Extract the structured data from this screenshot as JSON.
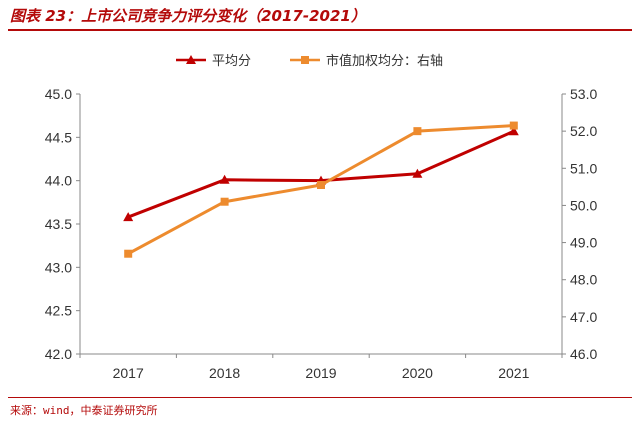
{
  "header": {
    "title": "图表 23：上市公司竞争力评分变化（2017-2021）"
  },
  "footer": {
    "source": "来源：wind，中泰证券研究所"
  },
  "colors": {
    "accent": "#b40a0a",
    "series1": "#c00000",
    "series2": "#ed8b2e",
    "axis": "#888888"
  },
  "chart_data": {
    "type": "line",
    "categories": [
      "2017",
      "2018",
      "2019",
      "2020",
      "2021"
    ],
    "series": [
      {
        "name": "平均分",
        "axis": "left",
        "values": [
          43.58,
          44.01,
          44.0,
          44.08,
          44.57
        ],
        "marker": "triangle"
      },
      {
        "name": "市值加权均分：右轴",
        "axis": "right",
        "values": [
          48.7,
          50.1,
          50.55,
          52.0,
          52.15
        ],
        "marker": "square"
      }
    ],
    "yleft": {
      "min": 42.0,
      "max": 45.0,
      "ticks": [
        "42.0",
        "42.5",
        "43.0",
        "43.5",
        "44.0",
        "44.5",
        "45.0"
      ]
    },
    "yright": {
      "min": 46.0,
      "max": 53.0,
      "ticks": [
        "46.0",
        "47.0",
        "48.0",
        "49.0",
        "50.0",
        "51.0",
        "52.0",
        "53.0"
      ]
    },
    "grid": false,
    "legend": "top-center"
  }
}
